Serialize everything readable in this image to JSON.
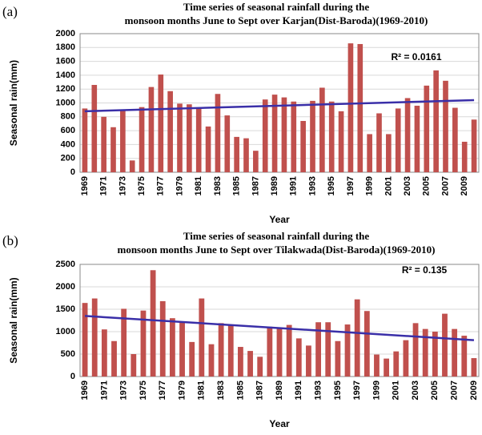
{
  "chart_data": [
    {
      "type": "bar",
      "panel_label": "(a)",
      "title_lines": [
        "Time series of seasonal rainfall during the",
        "monsoon months June to Sept over Karjan(Dist-Baroda)(1969-2010)"
      ],
      "y_label": "Seasonal rain(mm)",
      "x_label": "Year",
      "categories": [
        "1969",
        null,
        "1971",
        null,
        "1973",
        null,
        "1975",
        null,
        "1977",
        null,
        "1979",
        null,
        "1981",
        null,
        "1983",
        null,
        "1985",
        null,
        "1987",
        null,
        "1989",
        null,
        "1991",
        null,
        "1993",
        null,
        "1995",
        null,
        "1997",
        null,
        "1999",
        null,
        "2001",
        null,
        "2003",
        null,
        "2005",
        null,
        "2007",
        null,
        "2009",
        null
      ],
      "values": [
        920,
        1260,
        800,
        650,
        900,
        170,
        940,
        1230,
        1410,
        1170,
        990,
        980,
        920,
        660,
        1130,
        820,
        510,
        490,
        310,
        1050,
        1120,
        1080,
        1020,
        740,
        1030,
        1220,
        1020,
        880,
        1860,
        1850,
        550,
        850,
        550,
        920,
        1070,
        960,
        1250,
        1470,
        1320,
        930,
        440,
        760
      ],
      "color": "#c0504d",
      "trendline": {
        "from": 880,
        "to": 1040,
        "color": "#3a2fa8"
      },
      "annotation": "R² = 0.0161",
      "ylim": [
        0,
        2000
      ],
      "yticks": [
        0,
        200,
        400,
        600,
        800,
        1000,
        1200,
        1400,
        1600,
        1800,
        2000
      ],
      "grid": true
    },
    {
      "type": "bar",
      "panel_label": "(b)",
      "title_lines": [
        "Time series of seasonal rainfall during the",
        "monsoon months June to Sept over Tilakwada(Dist-Baroda)(1969-2010)"
      ],
      "y_label": "Seasonal rain(mm)",
      "x_label": "Year",
      "categories": [
        "1969",
        null,
        "1971",
        null,
        "1973",
        null,
        "1975",
        null,
        "1977",
        null,
        "1979",
        null,
        "1981",
        null,
        "1983",
        null,
        "1985",
        null,
        "1987",
        null,
        "1989",
        null,
        "1991",
        null,
        "1993",
        null,
        "1995",
        null,
        "1997",
        null,
        "1999",
        null,
        "2001",
        null,
        "2003",
        null,
        "2005",
        null,
        "2007",
        null,
        "2009"
      ],
      "values": [
        1640,
        1740,
        1050,
        790,
        1510,
        500,
        1470,
        2370,
        1680,
        1300,
        1200,
        770,
        1740,
        720,
        1190,
        1160,
        660,
        570,
        440,
        1110,
        1090,
        1150,
        850,
        690,
        1210,
        1210,
        790,
        1160,
        1720,
        1460,
        490,
        400,
        560,
        810,
        1190,
        1060,
        1000,
        1400,
        1060,
        910,
        410
      ],
      "color": "#c0504d",
      "trendline": {
        "from": 1350,
        "to": 810,
        "color": "#3a2fa8"
      },
      "annotation": "R² = 0.135",
      "ylim": [
        0,
        2500
      ],
      "yticks": [
        0,
        500,
        1000,
        1500,
        2000,
        2500
      ],
      "grid": true
    }
  ]
}
